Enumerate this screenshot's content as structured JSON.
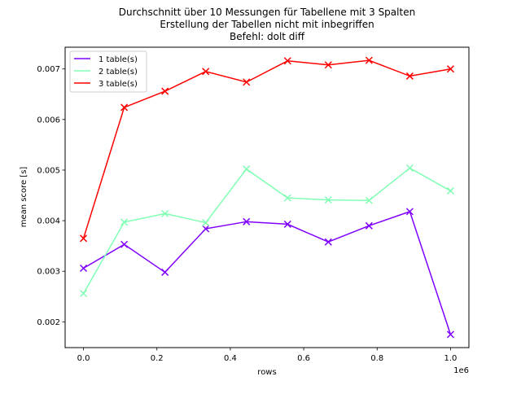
{
  "chart_data": {
    "type": "line",
    "title": [
      "Durchschnitt über 10 Messungen für Tabellene mit 3 Spalten",
      "Erstellung der Tabellen nicht mit inbegriffen",
      "Befehl: dolt diff"
    ],
    "xlabel": "rows",
    "ylabel": "mean score [s]",
    "x_offset_label": "1e6",
    "xlim": [
      -0.05,
      1.05
    ],
    "ylim": [
      0.00149,
      0.00743
    ],
    "x_ticks": [
      0.0,
      0.2,
      0.4,
      0.6,
      0.8,
      1.0
    ],
    "x_tick_labels": [
      "0.0",
      "0.2",
      "0.4",
      "0.6",
      "0.8",
      "1.0"
    ],
    "y_ticks": [
      0.002,
      0.003,
      0.004,
      0.005,
      0.006,
      0.007
    ],
    "y_tick_labels": [
      "0.002",
      "0.003",
      "0.004",
      "0.005",
      "0.006",
      "0.007"
    ],
    "x": [
      0.0,
      0.111,
      0.222,
      0.333,
      0.444,
      0.556,
      0.667,
      0.778,
      0.889,
      1.0
    ],
    "legend_position": "top-left",
    "series": [
      {
        "name": "1 table(s)",
        "color": "#8000ff",
        "values": [
          0.00306,
          0.00353,
          0.00298,
          0.00384,
          0.00398,
          0.00393,
          0.00358,
          0.0039,
          0.00418,
          0.00175
        ]
      },
      {
        "name": "2 table(s)",
        "color": "#80ffb4",
        "values": [
          0.00256,
          0.00397,
          0.00414,
          0.00396,
          0.00502,
          0.00445,
          0.00441,
          0.0044,
          0.00504,
          0.00459
        ]
      },
      {
        "name": "3 table(s)",
        "color": "#ff0000",
        "values": [
          0.00365,
          0.00624,
          0.00656,
          0.00695,
          0.00674,
          0.00716,
          0.00708,
          0.00717,
          0.00686,
          0.007
        ]
      }
    ]
  }
}
